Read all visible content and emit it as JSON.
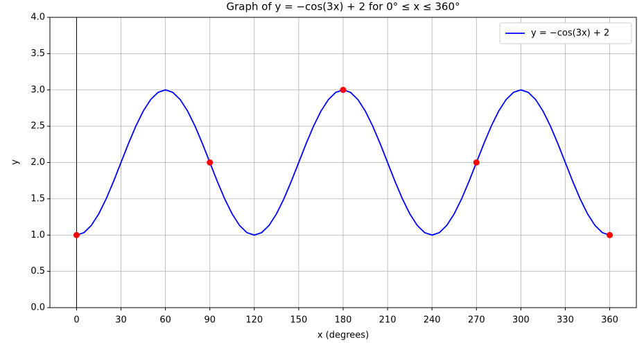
{
  "chart_data": {
    "type": "line",
    "title": "Graph of y = −cos(3x) + 2 for 0° ≤ x ≤ 360°",
    "x_label": "x (degrees)",
    "y_label": "y",
    "x": [
      0,
      5,
      10,
      15,
      20,
      25,
      30,
      35,
      40,
      45,
      50,
      55,
      60,
      65,
      70,
      75,
      80,
      85,
      90,
      95,
      100,
      105,
      110,
      115,
      120,
      125,
      130,
      135,
      140,
      145,
      150,
      155,
      160,
      165,
      170,
      175,
      180,
      185,
      190,
      195,
      200,
      205,
      210,
      215,
      220,
      225,
      230,
      235,
      240,
      245,
      250,
      255,
      260,
      265,
      270,
      275,
      280,
      285,
      290,
      295,
      300,
      305,
      310,
      315,
      320,
      325,
      330,
      335,
      340,
      345,
      350,
      355,
      360
    ],
    "series": [
      {
        "name": "y = −cos(3x) + 2",
        "color": "#0000ff",
        "values": [
          1,
          1.034,
          1.134,
          1.293,
          1.5,
          1.741,
          2,
          2.259,
          2.5,
          2.707,
          2.866,
          2.966,
          3,
          2.966,
          2.866,
          2.707,
          2.5,
          2.259,
          2,
          1.741,
          1.5,
          1.293,
          1.134,
          1.034,
          1,
          1.034,
          1.134,
          1.293,
          1.5,
          1.741,
          2,
          2.259,
          2.5,
          2.707,
          2.866,
          2.966,
          3,
          2.966,
          2.866,
          2.707,
          2.5,
          2.259,
          2,
          1.741,
          1.5,
          1.293,
          1.134,
          1.034,
          1,
          1.034,
          1.134,
          1.293,
          1.5,
          1.741,
          2,
          2.259,
          2.5,
          2.707,
          2.866,
          2.966,
          3,
          2.966,
          2.866,
          2.707,
          2.5,
          2.259,
          2,
          1.741,
          1.5,
          1.293,
          1.134,
          1.034,
          1
        ]
      }
    ],
    "points": {
      "color": "#ff0000",
      "x": [
        0,
        90,
        180,
        270,
        360
      ],
      "values": [
        1,
        2,
        3,
        2,
        1
      ]
    },
    "axvline": {
      "value": 0,
      "color": "#000000"
    },
    "xlim": [
      -18,
      378
    ],
    "ylim": [
      0,
      4
    ],
    "xticks": [
      0,
      30,
      60,
      90,
      120,
      150,
      180,
      210,
      240,
      270,
      300,
      330,
      360
    ],
    "yticks": [
      {
        "value": 0,
        "label": "0.0"
      },
      {
        "value": 0.5,
        "label": "0.5"
      },
      {
        "value": 1,
        "label": "1.0"
      },
      {
        "value": 1.5,
        "label": "1.5"
      },
      {
        "value": 2,
        "label": "2.0"
      },
      {
        "value": 2.5,
        "label": "2.5"
      },
      {
        "value": 3,
        "label": "3.0"
      },
      {
        "value": 3.5,
        "label": "3.5"
      },
      {
        "value": 4,
        "label": "4.0"
      }
    ],
    "grid": true,
    "legend": "upper right"
  }
}
